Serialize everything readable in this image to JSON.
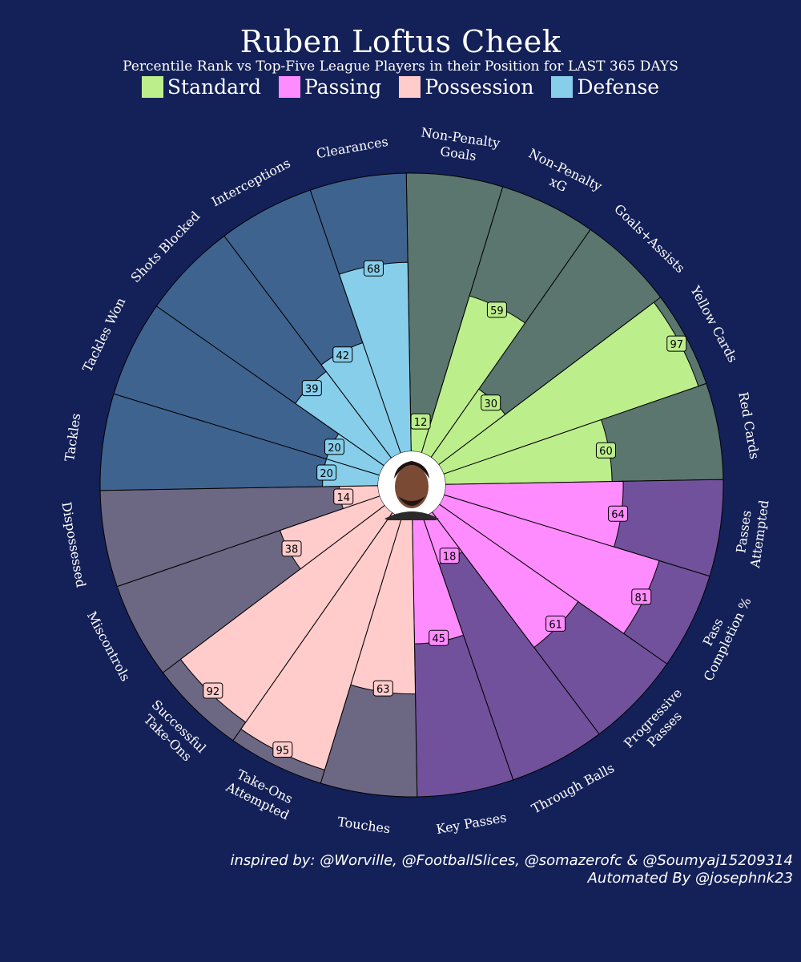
{
  "chart_data": {
    "type": "polar-bar",
    "title": "Ruben Loftus Cheek",
    "subtitle": "Percentile Rank vs Top-Five League Players in their Position for LAST 365 DAYS",
    "ylim": [
      0,
      100
    ],
    "legend": [
      {
        "name": "Standard",
        "color": "#bdee8c"
      },
      {
        "name": "Passing",
        "color": "#ff8cff"
      },
      {
        "name": "Possession",
        "color": "#ffcccb"
      },
      {
        "name": "Defense",
        "color": "#87ceeb"
      }
    ],
    "categories": [
      {
        "label": "Non-Penalty\nGoals",
        "value": 12,
        "group": "Standard"
      },
      {
        "label": "Non-Penalty\nxG",
        "value": 59,
        "group": "Standard"
      },
      {
        "label": "Goals+Assists",
        "value": 30,
        "group": "Standard"
      },
      {
        "label": "Yellow Cards",
        "value": 97,
        "group": "Standard"
      },
      {
        "label": "Red Cards",
        "value": 60,
        "group": "Standard"
      },
      {
        "label": "Passes\nAttempted",
        "value": 64,
        "group": "Passing"
      },
      {
        "label": "Pass\nCompletion %",
        "value": 81,
        "group": "Passing"
      },
      {
        "label": "Progressive\nPasses",
        "value": 61,
        "group": "Passing"
      },
      {
        "label": "Through Balls",
        "value": 18,
        "group": "Passing"
      },
      {
        "label": "Key Passes",
        "value": 45,
        "group": "Passing"
      },
      {
        "label": "Touches",
        "value": 63,
        "group": "Possession"
      },
      {
        "label": "Take-Ons\nAttempted",
        "value": 95,
        "group": "Possession"
      },
      {
        "label": "Successful\nTake-Ons",
        "value": 92,
        "group": "Possession"
      },
      {
        "label": "Miscontrols",
        "value": 38,
        "group": "Possession"
      },
      {
        "label": "Dispossessed",
        "value": 14,
        "group": "Possession"
      },
      {
        "label": "Tackles",
        "value": 20,
        "group": "Defense"
      },
      {
        "label": "Tackles Won",
        "value": 20,
        "group": "Defense"
      },
      {
        "label": "Shots Blocked",
        "value": 39,
        "group": "Defense"
      },
      {
        "label": "Interceptions",
        "value": 42,
        "group": "Defense"
      },
      {
        "label": "Clearances",
        "value": 68,
        "group": "Defense"
      }
    ],
    "background_colors": {
      "Standard": "#5a766e",
      "Passing": "#71519b",
      "Possession": "#6c6783",
      "Defense": "#3f638f"
    },
    "center_image": "player-photo"
  },
  "credits": {
    "line1": "inspired by: @Worville, @FootballSlices, @somazerofc & @Soumyaj15209314",
    "line2": "Automated By @josephnk23"
  }
}
